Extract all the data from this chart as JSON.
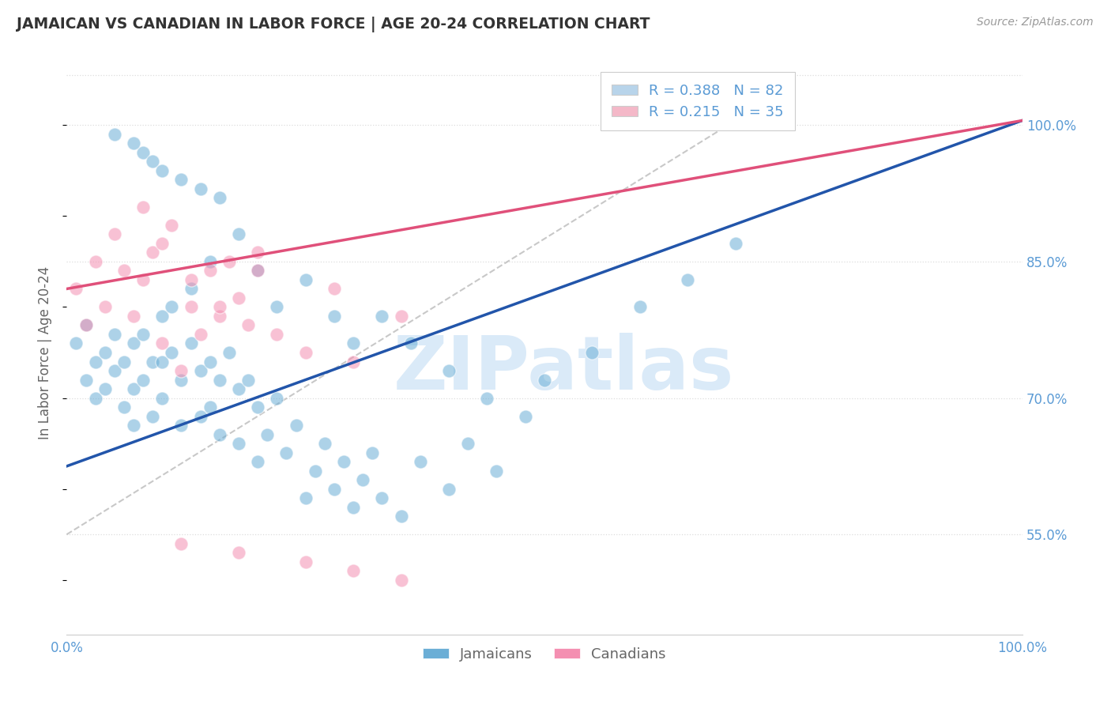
{
  "title": "JAMAICAN VS CANADIAN IN LABOR FORCE | AGE 20-24 CORRELATION CHART",
  "source_text": "Source: ZipAtlas.com",
  "ylabel": "In Labor Force | Age 20-24",
  "y_tick_labels": [
    "55.0%",
    "70.0%",
    "85.0%",
    "100.0%"
  ],
  "y_tick_values": [
    0.55,
    0.7,
    0.85,
    1.0
  ],
  "xlim": [
    0.0,
    1.0
  ],
  "ylim": [
    0.44,
    1.06
  ],
  "legend_r_items": [
    {
      "r": "0.388",
      "n": "82",
      "color": "#b8d4ea"
    },
    {
      "r": "0.215",
      "n": "35",
      "color": "#f4b8c8"
    }
  ],
  "jamaican_color": "#6baed6",
  "canadian_color": "#f48fb1",
  "jamaican_line_color": "#2255aa",
  "canadian_line_color": "#e0507a",
  "diagonal_line_color": "#bbbbbb",
  "watermark_text": "ZIPatlas",
  "watermark_color": "#daeaf8",
  "background_color": "#ffffff",
  "grid_color": "#dddddd",
  "grid_linestyle": "dotted",
  "title_color": "#333333",
  "axis_label_color": "#666666",
  "tick_label_color": "#5b9bd5",
  "source_color": "#999999",
  "blue_line_x0": 0.0,
  "blue_line_y0": 0.625,
  "blue_line_x1": 1.0,
  "blue_line_y1": 1.005,
  "pink_line_x0": 0.0,
  "pink_line_y0": 0.82,
  "pink_line_x1": 1.0,
  "pink_line_y1": 1.005,
  "diag_line_x0": 0.0,
  "diag_line_y0": 0.55,
  "diag_line_x1": 0.7,
  "diag_line_y1": 1.005,
  "jamaican_x": [
    0.01,
    0.02,
    0.02,
    0.03,
    0.03,
    0.04,
    0.04,
    0.05,
    0.05,
    0.06,
    0.06,
    0.07,
    0.07,
    0.07,
    0.08,
    0.08,
    0.09,
    0.09,
    0.1,
    0.1,
    0.1,
    0.11,
    0.11,
    0.12,
    0.12,
    0.13,
    0.14,
    0.14,
    0.15,
    0.15,
    0.16,
    0.16,
    0.17,
    0.18,
    0.18,
    0.19,
    0.2,
    0.2,
    0.21,
    0.22,
    0.23,
    0.24,
    0.25,
    0.26,
    0.27,
    0.28,
    0.29,
    0.3,
    0.31,
    0.32,
    0.33,
    0.35,
    0.37,
    0.4,
    0.42,
    0.45,
    0.48,
    0.5,
    0.55,
    0.6,
    0.65,
    0.7,
    0.08,
    0.09,
    0.1,
    0.12,
    0.14,
    0.16,
    0.13,
    0.15,
    0.18,
    0.2,
    0.22,
    0.25,
    0.28,
    0.3,
    0.33,
    0.36,
    0.4,
    0.44,
    0.05,
    0.07
  ],
  "jamaican_y": [
    0.76,
    0.72,
    0.78,
    0.74,
    0.7,
    0.75,
    0.71,
    0.77,
    0.73,
    0.74,
    0.69,
    0.76,
    0.71,
    0.67,
    0.77,
    0.72,
    0.74,
    0.68,
    0.79,
    0.74,
    0.7,
    0.8,
    0.75,
    0.72,
    0.67,
    0.76,
    0.73,
    0.68,
    0.74,
    0.69,
    0.72,
    0.66,
    0.75,
    0.71,
    0.65,
    0.72,
    0.69,
    0.63,
    0.66,
    0.7,
    0.64,
    0.67,
    0.59,
    0.62,
    0.65,
    0.6,
    0.63,
    0.58,
    0.61,
    0.64,
    0.59,
    0.57,
    0.63,
    0.6,
    0.65,
    0.62,
    0.68,
    0.72,
    0.75,
    0.8,
    0.83,
    0.87,
    0.97,
    0.96,
    0.95,
    0.94,
    0.93,
    0.92,
    0.82,
    0.85,
    0.88,
    0.84,
    0.8,
    0.83,
    0.79,
    0.76,
    0.79,
    0.76,
    0.73,
    0.7,
    0.99,
    0.98
  ],
  "canadian_x": [
    0.01,
    0.02,
    0.03,
    0.04,
    0.05,
    0.06,
    0.07,
    0.08,
    0.09,
    0.1,
    0.11,
    0.12,
    0.13,
    0.14,
    0.15,
    0.16,
    0.17,
    0.18,
    0.19,
    0.2,
    0.22,
    0.25,
    0.28,
    0.3,
    0.35,
    0.08,
    0.1,
    0.13,
    0.16,
    0.2,
    0.25,
    0.3,
    0.12,
    0.18,
    0.35
  ],
  "canadian_y": [
    0.82,
    0.78,
    0.85,
    0.8,
    0.88,
    0.84,
    0.79,
    0.83,
    0.86,
    0.76,
    0.89,
    0.73,
    0.8,
    0.77,
    0.84,
    0.79,
    0.85,
    0.81,
    0.78,
    0.84,
    0.77,
    0.75,
    0.82,
    0.74,
    0.79,
    0.91,
    0.87,
    0.83,
    0.8,
    0.86,
    0.52,
    0.51,
    0.54,
    0.53,
    0.5
  ]
}
